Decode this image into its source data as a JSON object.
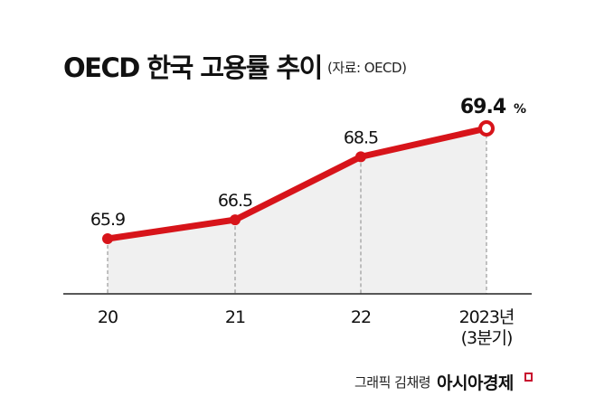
{
  "title": "OECD 한국 고용률 추이",
  "source": "(자료: OECD)",
  "chart_data": {
    "type": "line",
    "title": "OECD 한국 고용률 추이",
    "categories": [
      "20",
      "21",
      "22",
      "2023년"
    ],
    "category_sublabels": [
      "",
      "",
      "",
      "(3분기)"
    ],
    "values": [
      65.9,
      66.5,
      68.5,
      69.4
    ],
    "value_labels": [
      "65.9",
      "66.5",
      "68.5",
      "69.4"
    ],
    "unit": "%",
    "ylim": [
      64.15,
      70
    ],
    "line_color": "#d7141a",
    "fill_color": "#f0f0f0"
  },
  "footer": {
    "credit": "그래픽 김채령",
    "brand": "아시아경제"
  }
}
